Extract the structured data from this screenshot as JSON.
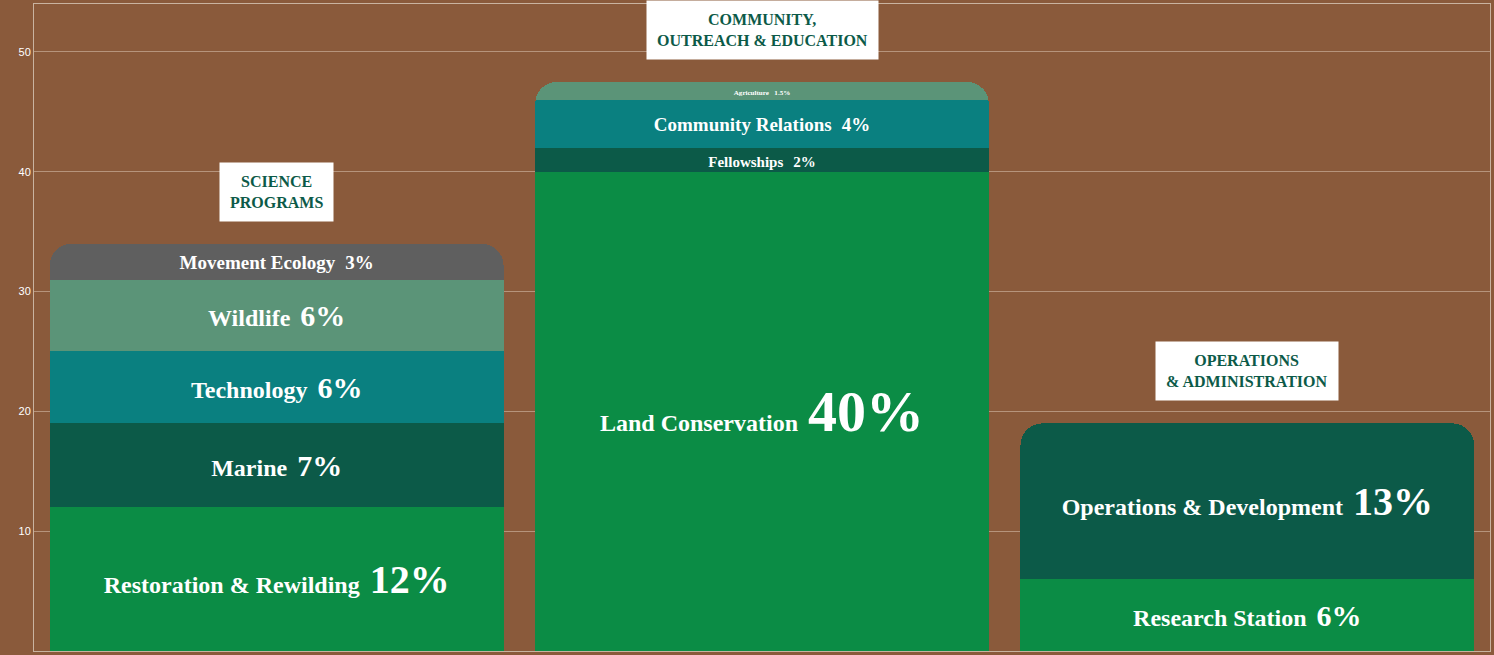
{
  "chart_data": {
    "type": "bar",
    "stacked": true,
    "data_labels": true,
    "tick_labels": "y",
    "grid": true,
    "categories": [
      "SCIENCE PROGRAMS",
      "COMMUNITY, OUTREACH & EDUCATION",
      "OPERATIONS & ADMINISTRATION"
    ],
    "ylim": [
      0,
      54
    ],
    "yticks": [
      10,
      20,
      30,
      40,
      50
    ],
    "series": [
      {
        "name": "Restoration & Rewilding",
        "color": "#0b8c45",
        "values": [
          12,
          null,
          null
        ],
        "value_labels": [
          "12%",
          null,
          null
        ]
      },
      {
        "name": "Marine",
        "color": "#0c5a48",
        "values": [
          7,
          null,
          null
        ],
        "value_labels": [
          "7%",
          null,
          null
        ]
      },
      {
        "name": "Technology",
        "color": "#0a8080",
        "values": [
          6,
          null,
          null
        ],
        "value_labels": [
          "6%",
          null,
          null
        ]
      },
      {
        "name": "Wildlife",
        "color": "#5b9478",
        "values": [
          6,
          null,
          null
        ],
        "value_labels": [
          "6%",
          null,
          null
        ]
      },
      {
        "name": "Movement Ecology",
        "color": "#5f5f5f",
        "values": [
          3,
          null,
          null
        ],
        "value_labels": [
          "3%",
          null,
          null
        ]
      },
      {
        "name": "Land Conservation",
        "color": "#0b8c45",
        "values": [
          null,
          40,
          null
        ],
        "value_labels": [
          null,
          "40%",
          null
        ]
      },
      {
        "name": "Fellowships",
        "color": "#0c5a48",
        "values": [
          null,
          2,
          null
        ],
        "value_labels": [
          null,
          "2%",
          null
        ]
      },
      {
        "name": "Community Relations",
        "color": "#0a8080",
        "values": [
          null,
          4,
          null
        ],
        "value_labels": [
          null,
          "4%",
          null
        ]
      },
      {
        "name": "Agriculture",
        "color": "#5b9478",
        "values": [
          null,
          1.5,
          null
        ],
        "value_labels": [
          null,
          "1.5%",
          null
        ]
      },
      {
        "name": "Research Station",
        "color": "#0b8c45",
        "values": [
          null,
          null,
          6
        ],
        "value_labels": [
          null,
          null,
          "6%"
        ]
      },
      {
        "name": "Operations & Development",
        "color": "#0c5a48",
        "values": [
          null,
          null,
          13
        ],
        "value_labels": [
          null,
          null,
          "13%"
        ]
      }
    ]
  }
}
